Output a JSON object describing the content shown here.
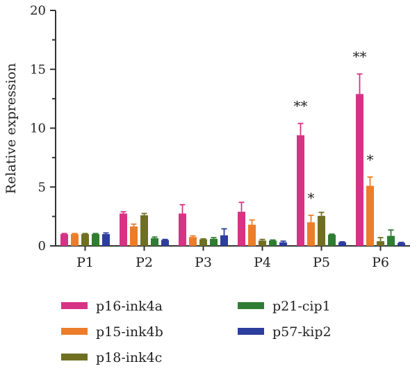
{
  "chart_data": {
    "type": "bar",
    "title": "",
    "xlabel": "",
    "ylabel": "Relative expression",
    "ylim": [
      0,
      20
    ],
    "yticks": [
      0,
      5,
      10,
      15,
      20
    ],
    "grid": false,
    "legend_position": "bottom",
    "categories": [
      "P1",
      "P2",
      "P3",
      "P4",
      "P5",
      "P6"
    ],
    "series": [
      {
        "name": "p16-ink4a",
        "color": "#d63384",
        "values": [
          1.0,
          2.75,
          2.75,
          2.9,
          9.4,
          12.9
        ],
        "errors": [
          0.05,
          0.15,
          0.75,
          0.8,
          1.0,
          1.7
        ]
      },
      {
        "name": "p15-ink4b",
        "color": "#ec7d2a",
        "values": [
          1.0,
          1.65,
          0.75,
          1.8,
          2.0,
          5.1
        ],
        "errors": [
          0.05,
          0.2,
          0.1,
          0.4,
          0.6,
          0.75
        ]
      },
      {
        "name": "p18-ink4c",
        "color": "#6f6f22",
        "values": [
          1.0,
          2.6,
          0.55,
          0.45,
          2.55,
          0.4
        ],
        "errors": [
          0.05,
          0.15,
          0.05,
          0.1,
          0.3,
          0.3
        ]
      },
      {
        "name": "p21-cip1",
        "color": "#2e7d32",
        "values": [
          1.0,
          0.65,
          0.6,
          0.45,
          0.95,
          0.85
        ],
        "errors": [
          0.05,
          0.1,
          0.1,
          0.05,
          0.05,
          0.5
        ]
      },
      {
        "name": "p57-kip2",
        "color": "#2c3e9e",
        "values": [
          1.0,
          0.5,
          0.9,
          0.3,
          0.3,
          0.25
        ],
        "errors": [
          0.1,
          0.05,
          0.55,
          0.1,
          0.05,
          0.05
        ]
      }
    ],
    "annotations": [
      {
        "category": "P5",
        "series": "p16-ink4a",
        "text": "**"
      },
      {
        "category": "P5",
        "series": "p15-ink4b",
        "text": "*"
      },
      {
        "category": "P6",
        "series": "p16-ink4a",
        "text": "**"
      },
      {
        "category": "P6",
        "series": "p15-ink4b",
        "text": "*"
      }
    ]
  }
}
